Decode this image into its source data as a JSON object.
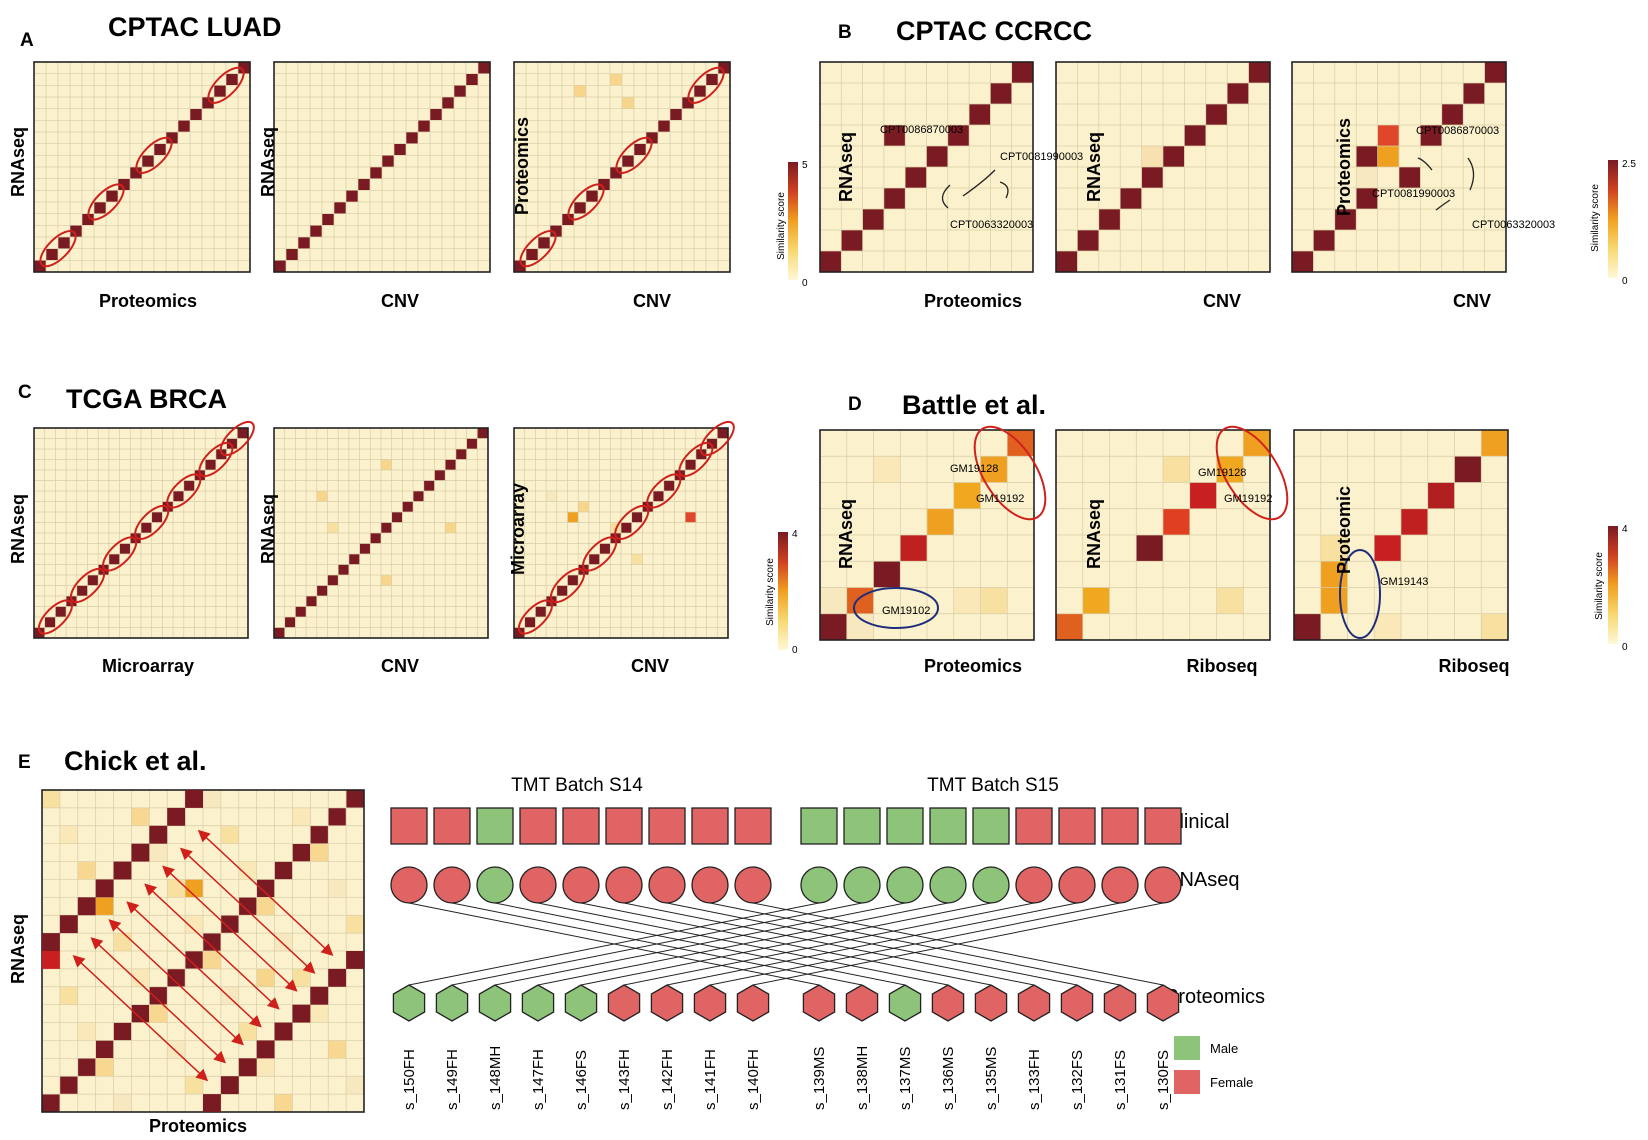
{
  "colors": {
    "cell_bg": "#fbf1cc",
    "grid": "#d7cda8",
    "diag": "#7a1a22",
    "orange": "#f0a020",
    "light_orange": "#f7d58a",
    "red_orange": "#e0462a",
    "red_mark": "#d0201c",
    "blue_mark": "#1f2e7a",
    "male": "#8dc47a",
    "female": "#e06464"
  },
  "panels": {
    "A": {
      "letter": "A",
      "title": "CPTAC LUAD",
      "heatmaps": [
        {
          "ylabel": "RNAseq",
          "xlabel": "Proteomics"
        },
        {
          "ylabel": "RNAseq",
          "xlabel": "CNV"
        },
        {
          "ylabel": "Proteomics",
          "xlabel": "CNV"
        }
      ],
      "colorbar": {
        "max": "5",
        "min": "0",
        "label": "Similarity score"
      }
    },
    "B": {
      "letter": "B",
      "title": "CPTAC CCRCC",
      "heatmaps": [
        {
          "ylabel": "RNAseq",
          "xlabel": "Proteomics"
        },
        {
          "ylabel": "RNAseq",
          "xlabel": "CNV"
        },
        {
          "ylabel": "Proteomics",
          "xlabel": "CNV"
        }
      ],
      "annotations1": [
        "CPT0086870003",
        "CPT0081990003",
        "CPT0063320003"
      ],
      "annotations3": [
        "CPT0086870003",
        "CPT0081990003",
        "CPT0063320003"
      ],
      "colorbar": {
        "max": "2.5",
        "min": "0",
        "label": "Similarity score"
      }
    },
    "C": {
      "letter": "C",
      "title": "TCGA BRCA",
      "heatmaps": [
        {
          "ylabel": "RNAseq",
          "xlabel": "Microarray"
        },
        {
          "ylabel": "RNAseq",
          "xlabel": "CNV"
        },
        {
          "ylabel": "Microarray",
          "xlabel": "CNV"
        }
      ],
      "colorbar": {
        "max": "4",
        "min": "0",
        "label": "Similarity score"
      }
    },
    "D": {
      "letter": "D",
      "title": "Battle et al.",
      "heatmaps": [
        {
          "ylabel": "RNAseq",
          "xlabel": "Proteomics"
        },
        {
          "ylabel": "RNAseq",
          "xlabel": "Riboseq"
        },
        {
          "ylabel": "Proteomic",
          "xlabel": "Riboseq"
        }
      ],
      "annotations1": [
        "GM19128",
        "GM19192",
        "GM19102"
      ],
      "annotations2": [
        "GM19128",
        "GM19192"
      ],
      "annotations3": [
        "GM19143"
      ],
      "colorbar": {
        "max": "4",
        "min": "0",
        "label": "Similarity score"
      }
    },
    "E": {
      "letter": "E",
      "title": "Chick et al.",
      "heatmap": {
        "ylabel": "RNAseq",
        "xlabel": "Proteomics"
      },
      "batch_s14": "TMT Batch S14",
      "batch_s15": "TMT Batch S15",
      "row_clinical": "Clinical",
      "row_rnaseq": "RNAseq",
      "row_proteomics": "Proteomics",
      "legend_male": "Male",
      "legend_female": "Female",
      "samples_s14": [
        "s_150FH",
        "s_149FH",
        "s_148MH",
        "s_147FH",
        "s_146FS",
        "s_143FH",
        "s_142FH",
        "s_141FH",
        "s_140FH"
      ],
      "samples_s15": [
        "s_139MS",
        "s_138MH",
        "s_137MS",
        "s_136MS",
        "s_135MS",
        "s_133FH",
        "s_132FS",
        "s_131FS",
        "s_130FS"
      ],
      "clinical_s14": [
        "F",
        "F",
        "M",
        "F",
        "F",
        "F",
        "F",
        "F",
        "F"
      ],
      "clinical_s15": [
        "M",
        "M",
        "M",
        "M",
        "M",
        "F",
        "F",
        "F",
        "F"
      ],
      "rnaseq_s14": [
        "F",
        "F",
        "M",
        "F",
        "F",
        "F",
        "F",
        "F",
        "F"
      ],
      "rnaseq_s15": [
        "M",
        "M",
        "M",
        "M",
        "M",
        "F",
        "F",
        "F",
        "F"
      ],
      "proteomics_s14": [
        "M",
        "M",
        "M",
        "M",
        "M",
        "F",
        "F",
        "F",
        "F"
      ],
      "proteomics_s15": [
        "F",
        "F",
        "M",
        "F",
        "F",
        "F",
        "F",
        "F",
        "F"
      ]
    }
  }
}
